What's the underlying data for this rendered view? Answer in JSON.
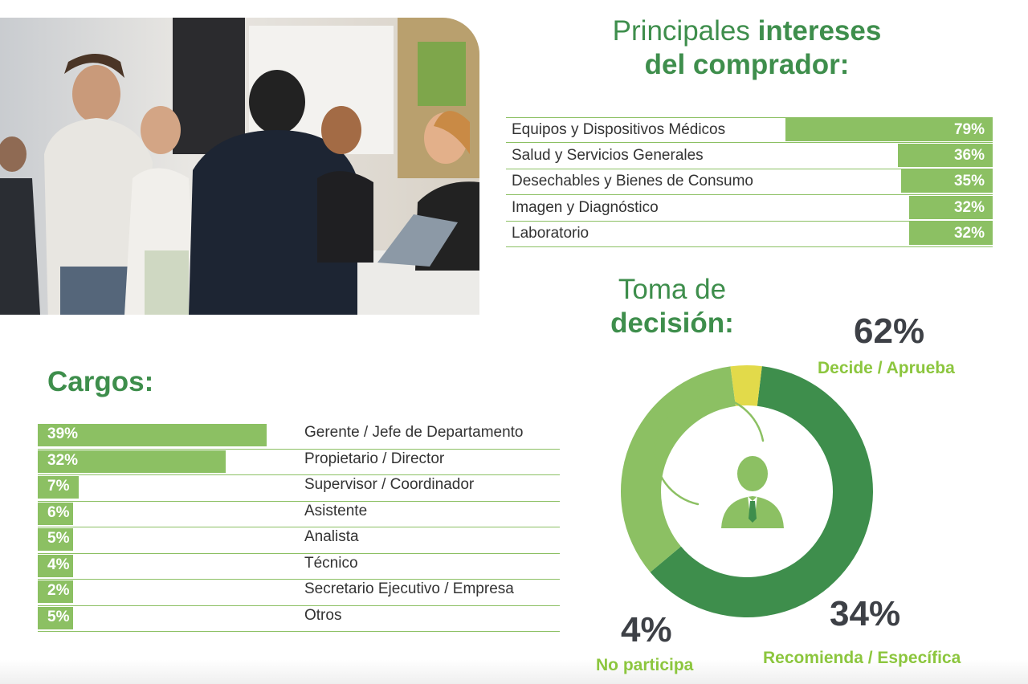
{
  "interests": {
    "title_light": "Principales",
    "title_bold_1": "intereses",
    "title_bold_2": "del comprador:",
    "rows": [
      {
        "label": "Equipos y Dispositivos Médicos",
        "pct": "79%"
      },
      {
        "label": "Salud y Servicios Generales",
        "pct": "36%"
      },
      {
        "label": "Desechables y Bienes de Consumo",
        "pct": "35%"
      },
      {
        "label": "Imagen y Diagnóstico",
        "pct": "32%"
      },
      {
        "label": "Laboratorio",
        "pct": "32%"
      }
    ]
  },
  "cargos": {
    "title": "Cargos:",
    "rows": [
      {
        "pct": "39%",
        "label": "Gerente / Jefe de Departamento"
      },
      {
        "pct": "32%",
        "label": "Propietario / Director"
      },
      {
        "pct": "7%",
        "label": "Supervisor / Coordinador"
      },
      {
        "pct": "6%",
        "label": "Asistente"
      },
      {
        "pct": "5%",
        "label": "Analista"
      },
      {
        "pct": "4%",
        "label": "Técnico"
      },
      {
        "pct": "2%",
        "label": "Secretario Ejecutivo /  Empresa"
      },
      {
        "pct": "5%",
        "label": "Otros"
      }
    ]
  },
  "decision": {
    "title_light": "Toma de",
    "title_bold": "decisión:",
    "slices": [
      {
        "pct": "62%",
        "caption": "Decide / Aprueba"
      },
      {
        "pct": "34%",
        "caption": "Recomienda / Específica"
      },
      {
        "pct": "4%",
        "caption": "No participa"
      }
    ],
    "center_icon": "businessman-icon"
  },
  "colors": {
    "dark_green": "#3e8e4c",
    "light_green": "#8cc063",
    "yellow": "#e2da4a",
    "text_dark": "#3d4046"
  },
  "chart_data": [
    {
      "type": "bar",
      "title": "Principales intereses del comprador:",
      "categories": [
        "Equipos y Dispositivos Médicos",
        "Salud y Servicios Generales",
        "Desechables y Bienes de Consumo",
        "Imagen y Diagnóstico",
        "Laboratorio"
      ],
      "values": [
        79,
        36,
        35,
        32,
        32
      ],
      "ylim": [
        0,
        100
      ]
    },
    {
      "type": "bar",
      "title": "Cargos:",
      "categories": [
        "Gerente / Jefe de Departamento",
        "Propietario / Director",
        "Supervisor / Coordinador",
        "Asistente",
        "Analista",
        "Técnico",
        "Secretario Ejecutivo /  Empresa",
        "Otros"
      ],
      "values": [
        39,
        32,
        7,
        6,
        5,
        4,
        2,
        5
      ],
      "ylim": [
        0,
        100
      ]
    },
    {
      "type": "pie",
      "title": "Toma de decisión:",
      "categories": [
        "Decide / Aprueba",
        "Recomienda / Específica",
        "No participa"
      ],
      "values": [
        62,
        34,
        4
      ]
    }
  ]
}
